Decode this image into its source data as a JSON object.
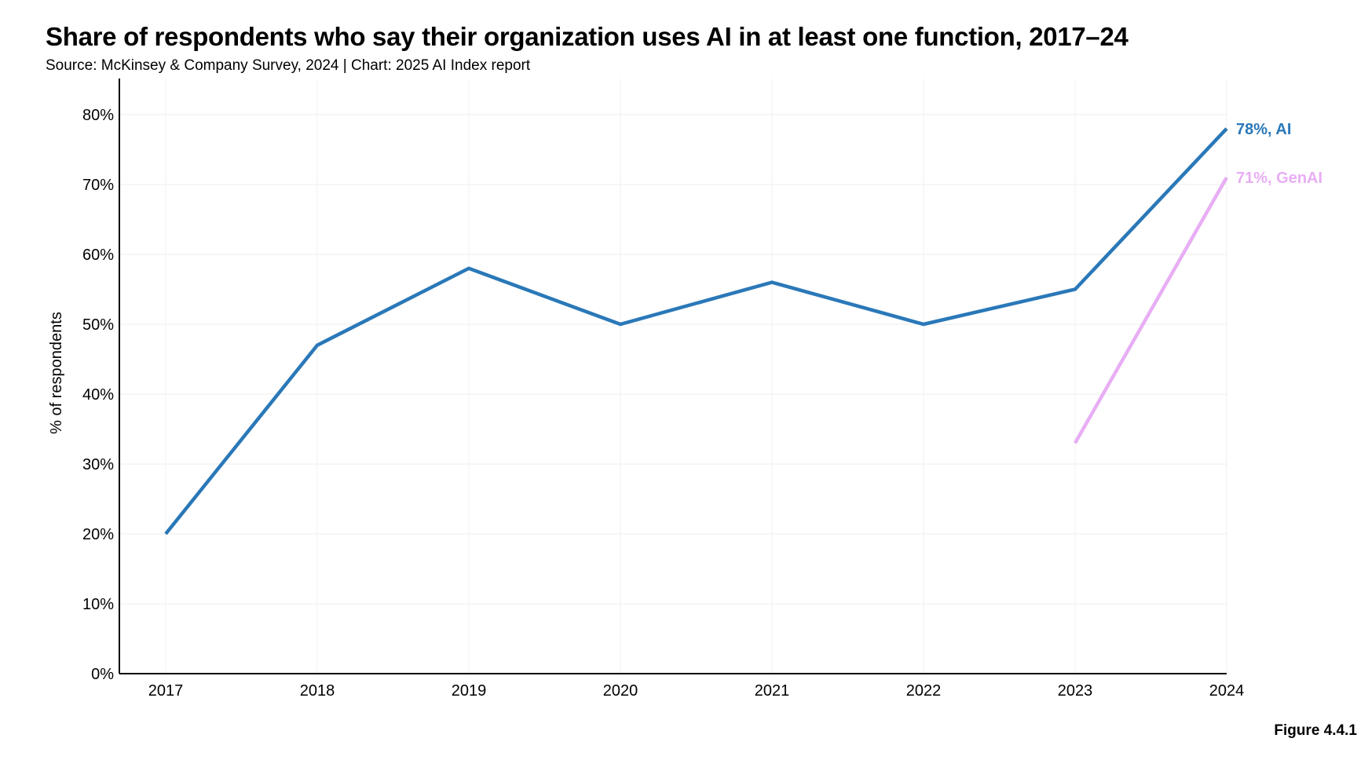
{
  "header": {
    "title": "Share of respondents who say their organization uses AI in at least one function, 2017–24",
    "subtitle": "Source: McKinsey & Company Survey, 2024 | Chart: 2025 AI Index report"
  },
  "footer": {
    "figure_label": "Figure 4.4.1"
  },
  "chart_data": {
    "type": "line",
    "title": "Share of respondents who say their organization uses AI in at least one function, 2017–24",
    "subtitle": "Source: McKinsey & Company Survey, 2024 | Chart: 2025 AI Index report",
    "xlabel": "",
    "ylabel": "% of respondents",
    "x": [
      2017,
      2018,
      2019,
      2020,
      2021,
      2022,
      2023,
      2024
    ],
    "ylim": [
      0,
      85
    ],
    "yticks": [
      0,
      10,
      20,
      30,
      40,
      50,
      60,
      70,
      80
    ],
    "ytick_labels": [
      "0%",
      "10%",
      "20%",
      "30%",
      "40%",
      "50%",
      "60%",
      "70%",
      "80%"
    ],
    "xtick_labels": [
      "2017",
      "2018",
      "2019",
      "2020",
      "2021",
      "2022",
      "2023",
      "2024"
    ],
    "grid": true,
    "series": [
      {
        "name": "AI",
        "color": "#2a78b8",
        "x": [
          2017,
          2018,
          2019,
          2020,
          2021,
          2022,
          2023,
          2024
        ],
        "values": [
          20,
          47,
          58,
          50,
          56,
          50,
          55,
          78
        ],
        "end_label": "78%, AI"
      },
      {
        "name": "GenAI",
        "color": "#e8aef4",
        "x": [
          2023,
          2024
        ],
        "values": [
          33,
          71
        ],
        "end_label": "71%, GenAI"
      }
    ]
  }
}
